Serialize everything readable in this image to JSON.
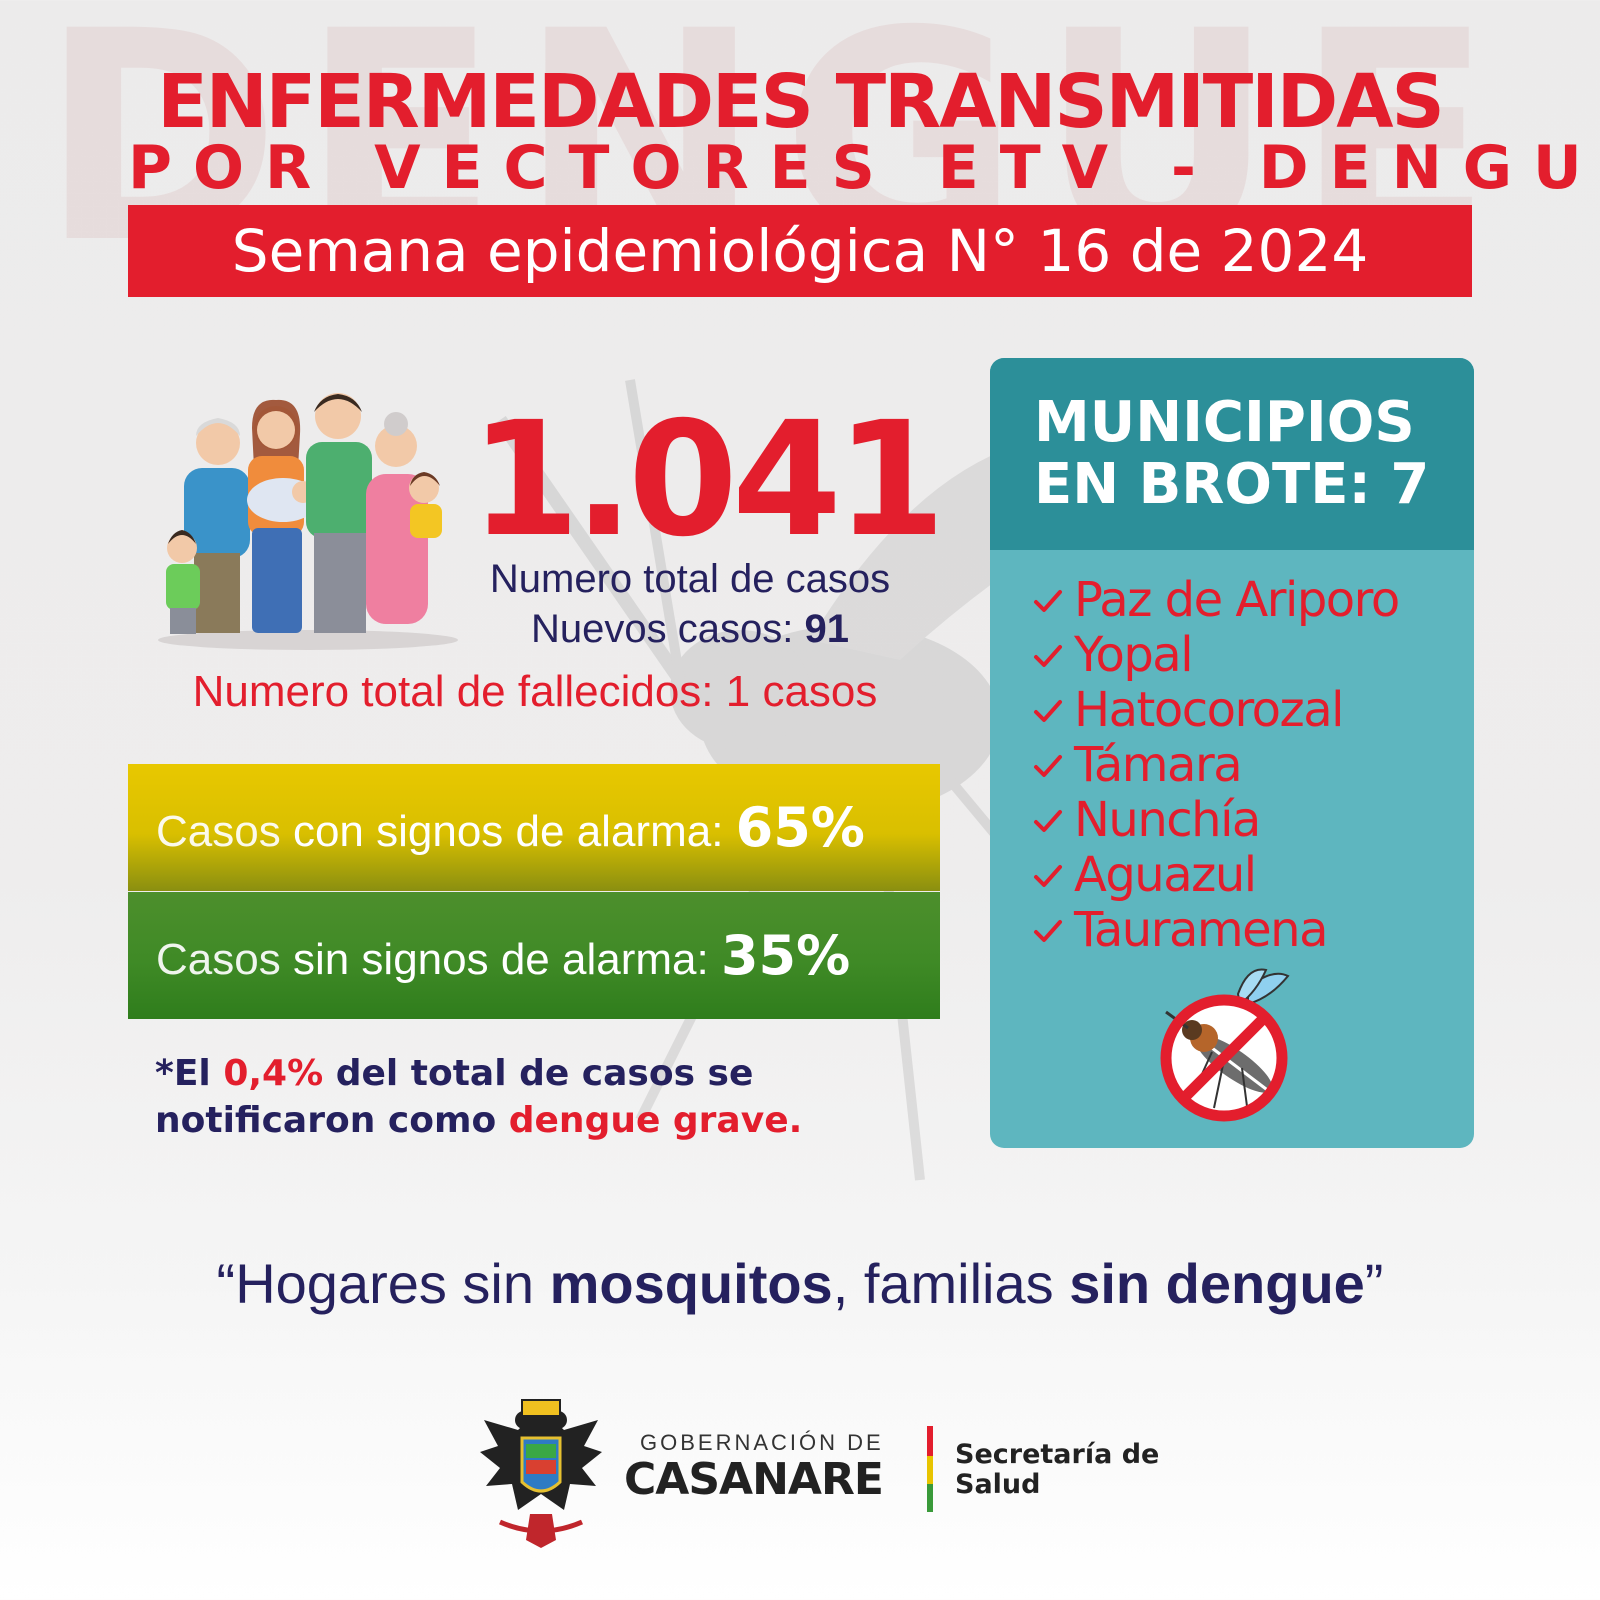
{
  "background_word": "DENGUE",
  "header": {
    "title_line1": "ENFERMEDADES TRANSMITIDAS",
    "title_line2": "POR VECTORES ETV - DENGUE",
    "week_label": "Semana epidemiológica N° 16 de 2024"
  },
  "stats": {
    "total_cases": "1.041",
    "total_cases_label": "Numero total de casos",
    "new_cases_label": "Nuevos casos:",
    "new_cases_value": "91",
    "deaths_text": "Numero total de fallecidos: 1 casos"
  },
  "alarm": {
    "with_signs": {
      "prefix": "Casos",
      "label": "con signos de alarma:",
      "value": "65%",
      "percent": 65
    },
    "without_signs": {
      "prefix": "Casos",
      "label": "sin signos de alarma:",
      "value": "35%",
      "percent": 35
    }
  },
  "note": {
    "part1": "*El",
    "pct": "0,4%",
    "part2": "del total de casos se notificaron como",
    "highlight": "dengue grave."
  },
  "municipios": {
    "title_line1": "MUNICIPIOS",
    "title_line2": "EN BROTE: 7",
    "items": [
      "Paz de Ariporo",
      "Yopal",
      "Hatocorozal",
      "Támara",
      "Nunchía",
      "Aguazul",
      "Tauramena"
    ]
  },
  "slogan": {
    "open_quote": "“",
    "part1": "Hogares sin ",
    "bold1": "mosquitos",
    "part2": ", familias ",
    "bold2": "sin dengue",
    "close_quote": "”"
  },
  "footer": {
    "gob_small": "GOBERNACIÓN DE",
    "gob_main": "CASANARE",
    "secretaria_line1": "Secretaría de",
    "secretaria_line2": "Salud"
  },
  "colors": {
    "primary_red": "#e31e2d",
    "navy": "#25215e",
    "teal_head": "#2c8f99",
    "teal_body": "#5eb6bf",
    "yellow_bar": "#e0c400",
    "green_bar": "#3f8a26"
  },
  "icons": [
    "family-illustration",
    "no-mosquito-icon",
    "check-icon",
    "casanare-crest-icon"
  ]
}
